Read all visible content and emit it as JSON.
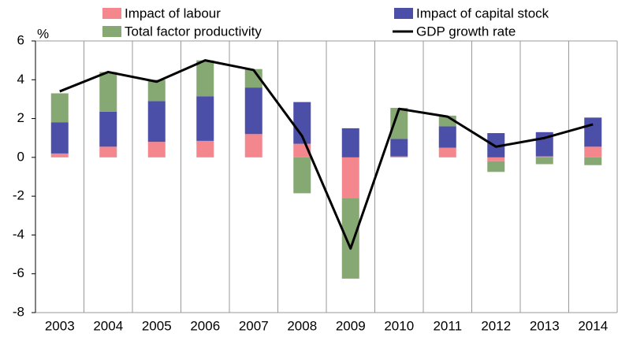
{
  "chart_data": {
    "type": "bar",
    "y_label": "%",
    "categories": [
      "2003",
      "2004",
      "2005",
      "2006",
      "2007",
      "2008",
      "2009",
      "2010",
      "2011",
      "2012",
      "2013",
      "2014"
    ],
    "series": [
      {
        "name": "Impact of labour",
        "type": "bar",
        "color": "#f4868e",
        "values": [
          0.2,
          0.55,
          0.8,
          0.85,
          1.2,
          0.7,
          -2.1,
          0.05,
          0.5,
          -0.2,
          0.05,
          0.55
        ]
      },
      {
        "name": "Impact of capital stock",
        "type": "bar",
        "color": "#4b4fa8",
        "values": [
          1.6,
          1.8,
          2.1,
          2.3,
          2.4,
          2.15,
          1.5,
          0.9,
          1.1,
          1.25,
          1.25,
          1.5
        ]
      },
      {
        "name": "Total factor productivity",
        "type": "bar",
        "color": "#86a873",
        "values": [
          1.5,
          2.05,
          1.1,
          1.85,
          0.95,
          -1.85,
          -4.15,
          1.6,
          0.55,
          -0.55,
          -0.35,
          -0.4
        ]
      },
      {
        "name": "GDP growth rate",
        "type": "line",
        "color": "#000000",
        "values": [
          3.4,
          4.4,
          3.9,
          5.0,
          4.5,
          1.1,
          -4.7,
          2.5,
          2.1,
          0.55,
          1.0,
          1.7
        ]
      }
    ],
    "ylim": [
      -8,
      6
    ],
    "yticks": [
      -8,
      -6,
      -4,
      -2,
      0,
      2,
      4,
      6
    ],
    "grid": true
  }
}
